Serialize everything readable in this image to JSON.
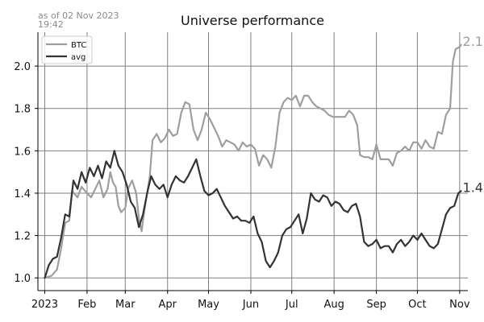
{
  "chart_data": {
    "type": "line",
    "title": "Universe performance",
    "asof_line1": "as of 02 Nov 2023",
    "asof_line2": "19:42",
    "xlabel": "",
    "ylabel": "",
    "x_range": [
      "2022-12-27",
      "2023-11-07"
    ],
    "ylim": [
      0.94,
      2.16
    ],
    "x_ticks": [
      {
        "date": "2023-01-01",
        "label": "2023"
      },
      {
        "date": "2023-02-01",
        "label": "Feb"
      },
      {
        "date": "2023-03-01",
        "label": "Mar"
      },
      {
        "date": "2023-04-01",
        "label": "Apr"
      },
      {
        "date": "2023-05-01",
        "label": "May"
      },
      {
        "date": "2023-06-01",
        "label": "Jun"
      },
      {
        "date": "2023-07-01",
        "label": "Jul"
      },
      {
        "date": "2023-08-01",
        "label": "Aug"
      },
      {
        "date": "2023-09-01",
        "label": "Sep"
      },
      {
        "date": "2023-10-01",
        "label": "Oct"
      },
      {
        "date": "2023-11-01",
        "label": "Nov"
      }
    ],
    "y_ticks": [
      1.0,
      1.2,
      1.4,
      1.6,
      1.8,
      2.0
    ],
    "y_tick_labels": [
      "1.0",
      "1.2",
      "1.4",
      "1.6",
      "1.8",
      "2.0"
    ],
    "grid": true,
    "legend_position": "top-left",
    "series": [
      {
        "name": "BTC",
        "color": "#9e9e9e",
        "end_label": "2.1",
        "points": [
          [
            "2023-01-01",
            1.0
          ],
          [
            "2023-01-06",
            1.01
          ],
          [
            "2023-01-10",
            1.04
          ],
          [
            "2023-01-13",
            1.14
          ],
          [
            "2023-01-16",
            1.26
          ],
          [
            "2023-01-19",
            1.27
          ],
          [
            "2023-01-21",
            1.41
          ],
          [
            "2023-01-25",
            1.38
          ],
          [
            "2023-01-28",
            1.43
          ],
          [
            "2023-02-01",
            1.4
          ],
          [
            "2023-02-04",
            1.38
          ],
          [
            "2023-02-07",
            1.42
          ],
          [
            "2023-02-10",
            1.46
          ],
          [
            "2023-02-13",
            1.38
          ],
          [
            "2023-02-16",
            1.42
          ],
          [
            "2023-02-18",
            1.5
          ],
          [
            "2023-02-20",
            1.45
          ],
          [
            "2023-02-22",
            1.43
          ],
          [
            "2023-02-24",
            1.34
          ],
          [
            "2023-02-26",
            1.31
          ],
          [
            "2023-03-01",
            1.33
          ],
          [
            "2023-03-03",
            1.42
          ],
          [
            "2023-03-06",
            1.46
          ],
          [
            "2023-03-09",
            1.4
          ],
          [
            "2023-03-11",
            1.28
          ],
          [
            "2023-03-13",
            1.22
          ],
          [
            "2023-03-15",
            1.32
          ],
          [
            "2023-03-17",
            1.4
          ],
          [
            "2023-03-19",
            1.48
          ],
          [
            "2023-03-21",
            1.65
          ],
          [
            "2023-03-24",
            1.68
          ],
          [
            "2023-03-27",
            1.64
          ],
          [
            "2023-03-30",
            1.66
          ],
          [
            "2023-04-02",
            1.7
          ],
          [
            "2023-04-05",
            1.67
          ],
          [
            "2023-04-08",
            1.68
          ],
          [
            "2023-04-11",
            1.78
          ],
          [
            "2023-04-14",
            1.83
          ],
          [
            "2023-04-17",
            1.82
          ],
          [
            "2023-04-20",
            1.7
          ],
          [
            "2023-04-23",
            1.65
          ],
          [
            "2023-04-26",
            1.7
          ],
          [
            "2023-04-29",
            1.78
          ],
          [
            "2023-05-02",
            1.75
          ],
          [
            "2023-05-05",
            1.71
          ],
          [
            "2023-05-08",
            1.67
          ],
          [
            "2023-05-11",
            1.62
          ],
          [
            "2023-05-14",
            1.65
          ],
          [
            "2023-05-17",
            1.64
          ],
          [
            "2023-05-20",
            1.63
          ],
          [
            "2023-05-23",
            1.6
          ],
          [
            "2023-05-26",
            1.64
          ],
          [
            "2023-05-29",
            1.62
          ],
          [
            "2023-06-01",
            1.63
          ],
          [
            "2023-06-04",
            1.61
          ],
          [
            "2023-06-07",
            1.53
          ],
          [
            "2023-06-10",
            1.58
          ],
          [
            "2023-06-13",
            1.56
          ],
          [
            "2023-06-16",
            1.52
          ],
          [
            "2023-06-19",
            1.62
          ],
          [
            "2023-06-22",
            1.78
          ],
          [
            "2023-06-25",
            1.83
          ],
          [
            "2023-06-28",
            1.85
          ],
          [
            "2023-07-01",
            1.84
          ],
          [
            "2023-07-04",
            1.86
          ],
          [
            "2023-07-07",
            1.81
          ],
          [
            "2023-07-10",
            1.86
          ],
          [
            "2023-07-13",
            1.86
          ],
          [
            "2023-07-16",
            1.83
          ],
          [
            "2023-07-19",
            1.81
          ],
          [
            "2023-07-22",
            1.8
          ],
          [
            "2023-07-25",
            1.79
          ],
          [
            "2023-07-28",
            1.77
          ],
          [
            "2023-07-31",
            1.76
          ],
          [
            "2023-08-03",
            1.76
          ],
          [
            "2023-08-06",
            1.76
          ],
          [
            "2023-08-09",
            1.76
          ],
          [
            "2023-08-12",
            1.79
          ],
          [
            "2023-08-15",
            1.77
          ],
          [
            "2023-08-18",
            1.72
          ],
          [
            "2023-08-20",
            1.58
          ],
          [
            "2023-08-23",
            1.57
          ],
          [
            "2023-08-26",
            1.57
          ],
          [
            "2023-08-29",
            1.56
          ],
          [
            "2023-09-01",
            1.63
          ],
          [
            "2023-09-04",
            1.56
          ],
          [
            "2023-09-07",
            1.56
          ],
          [
            "2023-09-10",
            1.56
          ],
          [
            "2023-09-13",
            1.53
          ],
          [
            "2023-09-16",
            1.59
          ],
          [
            "2023-09-19",
            1.6
          ],
          [
            "2023-09-22",
            1.62
          ],
          [
            "2023-09-25",
            1.6
          ],
          [
            "2023-09-28",
            1.64
          ],
          [
            "2023-10-01",
            1.64
          ],
          [
            "2023-10-04",
            1.61
          ],
          [
            "2023-10-07",
            1.65
          ],
          [
            "2023-10-10",
            1.62
          ],
          [
            "2023-10-13",
            1.61
          ],
          [
            "2023-10-16",
            1.69
          ],
          [
            "2023-10-19",
            1.68
          ],
          [
            "2023-10-22",
            1.77
          ],
          [
            "2023-10-25",
            1.8
          ],
          [
            "2023-10-27",
            2.02
          ],
          [
            "2023-10-29",
            2.08
          ],
          [
            "2023-11-01",
            2.09
          ],
          [
            "2023-11-02",
            2.1
          ]
        ]
      },
      {
        "name": "avg",
        "color": "#333333",
        "end_label": "1.4",
        "points": [
          [
            "2023-01-01",
            1.0
          ],
          [
            "2023-01-04",
            1.06
          ],
          [
            "2023-01-07",
            1.09
          ],
          [
            "2023-01-10",
            1.1
          ],
          [
            "2023-01-13",
            1.19
          ],
          [
            "2023-01-16",
            1.3
          ],
          [
            "2023-01-19",
            1.29
          ],
          [
            "2023-01-22",
            1.46
          ],
          [
            "2023-01-25",
            1.42
          ],
          [
            "2023-01-28",
            1.5
          ],
          [
            "2023-01-31",
            1.45
          ],
          [
            "2023-02-03",
            1.52
          ],
          [
            "2023-02-06",
            1.48
          ],
          [
            "2023-02-09",
            1.53
          ],
          [
            "2023-02-12",
            1.47
          ],
          [
            "2023-02-15",
            1.55
          ],
          [
            "2023-02-18",
            1.52
          ],
          [
            "2023-02-21",
            1.6
          ],
          [
            "2023-02-24",
            1.53
          ],
          [
            "2023-02-27",
            1.5
          ],
          [
            "2023-03-02",
            1.44
          ],
          [
            "2023-03-05",
            1.36
          ],
          [
            "2023-03-08",
            1.33
          ],
          [
            "2023-03-11",
            1.24
          ],
          [
            "2023-03-14",
            1.3
          ],
          [
            "2023-03-17",
            1.4
          ],
          [
            "2023-03-20",
            1.48
          ],
          [
            "2023-03-23",
            1.44
          ],
          [
            "2023-03-26",
            1.42
          ],
          [
            "2023-03-29",
            1.44
          ],
          [
            "2023-04-01",
            1.38
          ],
          [
            "2023-04-04",
            1.44
          ],
          [
            "2023-04-07",
            1.48
          ],
          [
            "2023-04-10",
            1.46
          ],
          [
            "2023-04-13",
            1.45
          ],
          [
            "2023-04-16",
            1.48
          ],
          [
            "2023-04-19",
            1.52
          ],
          [
            "2023-04-22",
            1.56
          ],
          [
            "2023-04-25",
            1.48
          ],
          [
            "2023-04-28",
            1.41
          ],
          [
            "2023-05-01",
            1.39
          ],
          [
            "2023-05-04",
            1.4
          ],
          [
            "2023-05-07",
            1.42
          ],
          [
            "2023-05-10",
            1.38
          ],
          [
            "2023-05-13",
            1.34
          ],
          [
            "2023-05-16",
            1.31
          ],
          [
            "2023-05-19",
            1.28
          ],
          [
            "2023-05-22",
            1.29
          ],
          [
            "2023-05-25",
            1.27
          ],
          [
            "2023-05-28",
            1.27
          ],
          [
            "2023-05-31",
            1.26
          ],
          [
            "2023-06-03",
            1.29
          ],
          [
            "2023-06-06",
            1.21
          ],
          [
            "2023-06-09",
            1.17
          ],
          [
            "2023-06-12",
            1.08
          ],
          [
            "2023-06-15",
            1.05
          ],
          [
            "2023-06-18",
            1.08
          ],
          [
            "2023-06-21",
            1.12
          ],
          [
            "2023-06-24",
            1.2
          ],
          [
            "2023-06-27",
            1.23
          ],
          [
            "2023-06-30",
            1.24
          ],
          [
            "2023-07-03",
            1.27
          ],
          [
            "2023-07-06",
            1.3
          ],
          [
            "2023-07-09",
            1.21
          ],
          [
            "2023-07-12",
            1.28
          ],
          [
            "2023-07-15",
            1.4
          ],
          [
            "2023-07-18",
            1.37
          ],
          [
            "2023-07-21",
            1.36
          ],
          [
            "2023-07-24",
            1.39
          ],
          [
            "2023-07-27",
            1.38
          ],
          [
            "2023-07-30",
            1.34
          ],
          [
            "2023-08-02",
            1.36
          ],
          [
            "2023-08-05",
            1.35
          ],
          [
            "2023-08-08",
            1.32
          ],
          [
            "2023-08-11",
            1.31
          ],
          [
            "2023-08-14",
            1.34
          ],
          [
            "2023-08-17",
            1.35
          ],
          [
            "2023-08-20",
            1.29
          ],
          [
            "2023-08-23",
            1.17
          ],
          [
            "2023-08-26",
            1.15
          ],
          [
            "2023-08-29",
            1.16
          ],
          [
            "2023-09-01",
            1.18
          ],
          [
            "2023-09-04",
            1.14
          ],
          [
            "2023-09-07",
            1.15
          ],
          [
            "2023-09-10",
            1.15
          ],
          [
            "2023-09-13",
            1.12
          ],
          [
            "2023-09-16",
            1.16
          ],
          [
            "2023-09-19",
            1.18
          ],
          [
            "2023-09-22",
            1.15
          ],
          [
            "2023-09-25",
            1.17
          ],
          [
            "2023-09-28",
            1.2
          ],
          [
            "2023-10-01",
            1.18
          ],
          [
            "2023-10-04",
            1.21
          ],
          [
            "2023-10-07",
            1.18
          ],
          [
            "2023-10-10",
            1.15
          ],
          [
            "2023-10-13",
            1.14
          ],
          [
            "2023-10-16",
            1.16
          ],
          [
            "2023-10-19",
            1.23
          ],
          [
            "2023-10-22",
            1.3
          ],
          [
            "2023-10-25",
            1.33
          ],
          [
            "2023-10-28",
            1.34
          ],
          [
            "2023-10-31",
            1.4
          ],
          [
            "2023-11-02",
            1.41
          ]
        ]
      }
    ]
  }
}
